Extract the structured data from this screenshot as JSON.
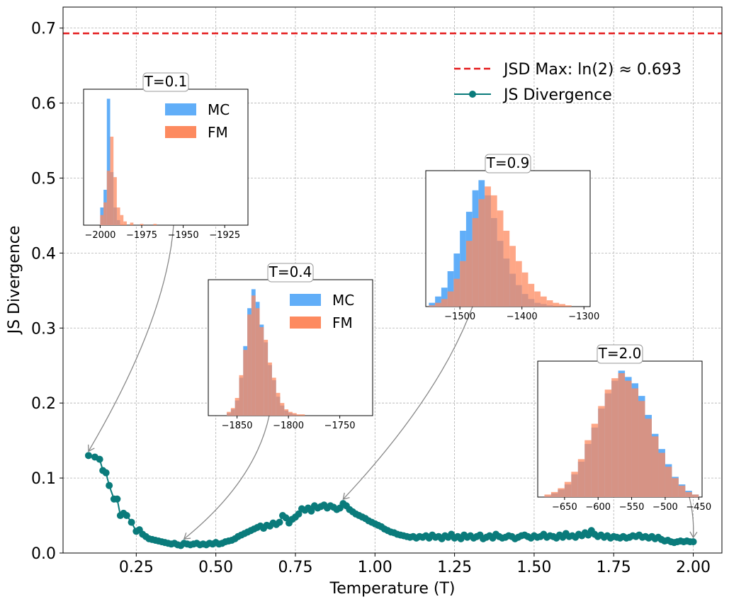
{
  "chart_data": {
    "type": "line",
    "xlabel": "Temperature (T)",
    "ylabel": "JS Divergence",
    "xlim": [
      0.02,
      2.09
    ],
    "ylim": [
      0.0,
      0.728
    ],
    "x_ticks": [
      0.25,
      0.5,
      0.75,
      1.0,
      1.25,
      1.5,
      1.75,
      2.0
    ],
    "x_tick_labels": [
      "0.25",
      "0.50",
      "0.75",
      "1.00",
      "1.25",
      "1.50",
      "1.75",
      "2.00"
    ],
    "y_ticks": [
      0.0,
      0.1,
      0.2,
      0.3,
      0.4,
      0.5,
      0.6,
      0.7
    ],
    "y_tick_labels": [
      "0.0",
      "0.1",
      "0.2",
      "0.3",
      "0.4",
      "0.5",
      "0.6",
      "0.7"
    ],
    "grid": true,
    "legend_position": "top-right",
    "reference_line": {
      "label": "JSD Max: ln(2) ≈ 0.693",
      "y": 0.693,
      "color": "#e41a1c",
      "style": "dashed"
    },
    "series": [
      {
        "name": "JS Divergence",
        "color": "#0a7b7b",
        "marker": "circle",
        "points": [
          [
            0.1,
            0.13
          ],
          [
            0.12,
            0.128
          ],
          [
            0.135,
            0.125
          ],
          [
            0.145,
            0.11
          ],
          [
            0.155,
            0.107
          ],
          [
            0.165,
            0.09
          ],
          [
            0.18,
            0.072
          ],
          [
            0.19,
            0.072
          ],
          [
            0.2,
            0.05
          ],
          [
            0.21,
            0.053
          ],
          [
            0.22,
            0.05
          ],
          [
            0.235,
            0.041
          ],
          [
            0.25,
            0.029
          ],
          [
            0.26,
            0.031
          ],
          [
            0.27,
            0.025
          ],
          [
            0.28,
            0.022
          ],
          [
            0.29,
            0.019
          ],
          [
            0.3,
            0.018
          ],
          [
            0.31,
            0.017
          ],
          [
            0.32,
            0.016
          ],
          [
            0.33,
            0.015
          ],
          [
            0.34,
            0.014
          ],
          [
            0.35,
            0.013
          ],
          [
            0.36,
            0.012
          ],
          [
            0.37,
            0.013
          ],
          [
            0.38,
            0.011
          ],
          [
            0.39,
            0.01
          ],
          [
            0.4,
            0.013
          ],
          [
            0.41,
            0.012
          ],
          [
            0.42,
            0.011
          ],
          [
            0.43,
            0.012
          ],
          [
            0.44,
            0.013
          ],
          [
            0.45,
            0.011
          ],
          [
            0.46,
            0.012
          ],
          [
            0.47,
            0.011
          ],
          [
            0.48,
            0.013
          ],
          [
            0.49,
            0.012
          ],
          [
            0.5,
            0.014
          ],
          [
            0.51,
            0.012
          ],
          [
            0.52,
            0.013
          ],
          [
            0.53,
            0.015
          ],
          [
            0.54,
            0.016
          ],
          [
            0.55,
            0.017
          ],
          [
            0.56,
            0.019
          ],
          [
            0.57,
            0.022
          ],
          [
            0.58,
            0.024
          ],
          [
            0.59,
            0.026
          ],
          [
            0.6,
            0.028
          ],
          [
            0.61,
            0.03
          ],
          [
            0.62,
            0.032
          ],
          [
            0.63,
            0.034
          ],
          [
            0.64,
            0.036
          ],
          [
            0.65,
            0.033
          ],
          [
            0.66,
            0.037
          ],
          [
            0.67,
            0.036
          ],
          [
            0.68,
            0.04
          ],
          [
            0.69,
            0.038
          ],
          [
            0.7,
            0.041
          ],
          [
            0.71,
            0.05
          ],
          [
            0.72,
            0.047
          ],
          [
            0.73,
            0.04
          ],
          [
            0.74,
            0.045
          ],
          [
            0.75,
            0.048
          ],
          [
            0.76,
            0.052
          ],
          [
            0.77,
            0.059
          ],
          [
            0.78,
            0.057
          ],
          [
            0.79,
            0.06
          ],
          [
            0.8,
            0.056
          ],
          [
            0.81,
            0.063
          ],
          [
            0.82,
            0.06
          ],
          [
            0.83,
            0.062
          ],
          [
            0.84,
            0.064
          ],
          [
            0.85,
            0.06
          ],
          [
            0.86,
            0.063
          ],
          [
            0.87,
            0.061
          ],
          [
            0.88,
            0.058
          ],
          [
            0.89,
            0.06
          ],
          [
            0.9,
            0.066
          ],
          [
            0.91,
            0.063
          ],
          [
            0.92,
            0.058
          ],
          [
            0.93,
            0.055
          ],
          [
            0.94,
            0.052
          ],
          [
            0.95,
            0.05
          ],
          [
            0.96,
            0.048
          ],
          [
            0.97,
            0.046
          ],
          [
            0.98,
            0.043
          ],
          [
            0.99,
            0.041
          ],
          [
            1.0,
            0.039
          ],
          [
            1.01,
            0.037
          ],
          [
            1.02,
            0.035
          ],
          [
            1.03,
            0.032
          ],
          [
            1.04,
            0.03
          ],
          [
            1.05,
            0.028
          ],
          [
            1.06,
            0.027
          ],
          [
            1.07,
            0.025
          ],
          [
            1.08,
            0.024
          ],
          [
            1.09,
            0.023
          ],
          [
            1.1,
            0.022
          ],
          [
            1.11,
            0.021
          ],
          [
            1.12,
            0.022
          ],
          [
            1.13,
            0.02
          ],
          [
            1.14,
            0.022
          ],
          [
            1.15,
            0.021
          ],
          [
            1.16,
            0.023
          ],
          [
            1.17,
            0.02
          ],
          [
            1.18,
            0.024
          ],
          [
            1.19,
            0.021
          ],
          [
            1.2,
            0.022
          ],
          [
            1.21,
            0.019
          ],
          [
            1.22,
            0.023
          ],
          [
            1.23,
            0.021
          ],
          [
            1.24,
            0.025
          ],
          [
            1.25,
            0.02
          ],
          [
            1.26,
            0.022
          ],
          [
            1.27,
            0.019
          ],
          [
            1.28,
            0.024
          ],
          [
            1.29,
            0.021
          ],
          [
            1.3,
            0.023
          ],
          [
            1.31,
            0.02
          ],
          [
            1.32,
            0.022
          ],
          [
            1.33,
            0.024
          ],
          [
            1.34,
            0.019
          ],
          [
            1.35,
            0.021
          ],
          [
            1.36,
            0.023
          ],
          [
            1.37,
            0.02
          ],
          [
            1.38,
            0.025
          ],
          [
            1.39,
            0.022
          ],
          [
            1.4,
            0.02
          ],
          [
            1.41,
            0.021
          ],
          [
            1.42,
            0.023
          ],
          [
            1.43,
            0.022
          ],
          [
            1.44,
            0.019
          ],
          [
            1.45,
            0.021
          ],
          [
            1.46,
            0.023
          ],
          [
            1.47,
            0.024
          ],
          [
            1.48,
            0.022
          ],
          [
            1.49,
            0.02
          ],
          [
            1.5,
            0.023
          ],
          [
            1.51,
            0.021
          ],
          [
            1.52,
            0.022
          ],
          [
            1.53,
            0.025
          ],
          [
            1.54,
            0.021
          ],
          [
            1.55,
            0.023
          ],
          [
            1.56,
            0.022
          ],
          [
            1.57,
            0.02
          ],
          [
            1.58,
            0.024
          ],
          [
            1.59,
            0.021
          ],
          [
            1.6,
            0.026
          ],
          [
            1.61,
            0.022
          ],
          [
            1.62,
            0.023
          ],
          [
            1.63,
            0.021
          ],
          [
            1.64,
            0.025
          ],
          [
            1.65,
            0.023
          ],
          [
            1.66,
            0.027
          ],
          [
            1.67,
            0.024
          ],
          [
            1.68,
            0.03
          ],
          [
            1.69,
            0.025
          ],
          [
            1.7,
            0.022
          ],
          [
            1.71,
            0.024
          ],
          [
            1.72,
            0.021
          ],
          [
            1.73,
            0.023
          ],
          [
            1.74,
            0.02
          ],
          [
            1.75,
            0.022
          ],
          [
            1.76,
            0.021
          ],
          [
            1.77,
            0.02
          ],
          [
            1.78,
            0.022
          ],
          [
            1.79,
            0.02
          ],
          [
            1.8,
            0.021
          ],
          [
            1.81,
            0.023
          ],
          [
            1.82,
            0.022
          ],
          [
            1.83,
            0.024
          ],
          [
            1.84,
            0.021
          ],
          [
            1.85,
            0.022
          ],
          [
            1.86,
            0.02
          ],
          [
            1.87,
            0.022
          ],
          [
            1.88,
            0.019
          ],
          [
            1.89,
            0.021
          ],
          [
            1.9,
            0.018
          ],
          [
            1.91,
            0.016
          ],
          [
            1.92,
            0.017
          ],
          [
            1.93,
            0.015
          ],
          [
            1.94,
            0.014
          ],
          [
            1.95,
            0.015
          ],
          [
            1.96,
            0.016
          ],
          [
            1.97,
            0.015
          ],
          [
            1.98,
            0.016
          ],
          [
            1.99,
            0.015
          ],
          [
            2.0,
            0.015
          ]
        ]
      }
    ],
    "insets": [
      {
        "title": "T=0.1",
        "x_ticks": [
          -2000,
          -1975,
          -1950,
          -1925
        ],
        "x_tick_labels": [
          "−2000",
          "−1975",
          "−1950",
          "−1925"
        ],
        "legend": [
          "MC",
          "FM"
        ],
        "anchor_t": 0.1,
        "anchor_y": 0.13,
        "xlim": [
          -2010,
          -1911
        ],
        "bins_x": [
          -2000,
          -1998,
          -1996,
          -1994,
          -1992,
          -1990,
          -1988,
          -1986,
          -1982,
          -1976,
          -1968
        ],
        "mc": [
          0.14,
          0.28,
          1.0,
          0.42,
          0.14,
          0.04,
          0.0,
          0.0,
          0.0,
          0.0,
          0.0
        ],
        "fm": [
          0.08,
          0.18,
          0.43,
          0.7,
          0.38,
          0.14,
          0.08,
          0.03,
          0.02,
          0.01,
          0.01
        ]
      },
      {
        "title": "T=0.4",
        "x_ticks": [
          -1850,
          -1800,
          -1750
        ],
        "x_tick_labels": [
          "−1850",
          "−1800",
          "−1750"
        ],
        "legend": [
          "MC",
          "FM"
        ],
        "anchor_t": 0.4,
        "anchor_y": 0.013,
        "xlim": [
          -1878,
          -1718
        ],
        "bins_x": [
          -1860,
          -1856,
          -1852,
          -1848,
          -1844,
          -1840,
          -1836,
          -1832,
          -1828,
          -1824,
          -1820,
          -1816,
          -1812,
          -1808,
          -1804,
          -1800,
          -1796,
          -1792,
          -1788,
          -1784,
          -1780
        ],
        "mc": [
          0.02,
          0.05,
          0.12,
          0.3,
          0.55,
          0.85,
          1.0,
          0.9,
          0.72,
          0.58,
          0.4,
          0.28,
          0.15,
          0.08,
          0.04,
          0.02,
          0.01,
          0.0,
          0.0,
          0.0,
          0.0
        ],
        "fm": [
          0.03,
          0.06,
          0.14,
          0.32,
          0.52,
          0.8,
          0.95,
          0.85,
          0.7,
          0.6,
          0.42,
          0.3,
          0.18,
          0.1,
          0.05,
          0.03,
          0.02,
          0.01,
          0.01,
          0.0,
          0.0
        ]
      },
      {
        "title": "T=0.9",
        "x_ticks": [
          -1500,
          -1400,
          -1300
        ],
        "x_tick_labels": [
          "−1500",
          "−1400",
          "−1300"
        ],
        "legend": [],
        "anchor_t": 0.9,
        "anchor_y": 0.066,
        "xlim": [
          -1555,
          -1290
        ],
        "bins_x": [
          -1550,
          -1540,
          -1530,
          -1520,
          -1510,
          -1500,
          -1490,
          -1480,
          -1470,
          -1460,
          -1450,
          -1440,
          -1430,
          -1420,
          -1410,
          -1400,
          -1390,
          -1380,
          -1370,
          -1360,
          -1350,
          -1340,
          -1330
        ],
        "mc": [
          0.03,
          0.08,
          0.15,
          0.28,
          0.42,
          0.6,
          0.75,
          0.92,
          1.0,
          0.88,
          0.7,
          0.52,
          0.38,
          0.26,
          0.17,
          0.1,
          0.06,
          0.03,
          0.02,
          0.01,
          0.0,
          0.0,
          0.0
        ],
        "fm": [
          0.01,
          0.03,
          0.06,
          0.12,
          0.22,
          0.36,
          0.52,
          0.7,
          0.85,
          0.95,
          0.88,
          0.76,
          0.6,
          0.48,
          0.36,
          0.27,
          0.18,
          0.12,
          0.08,
          0.05,
          0.03,
          0.02,
          0.01
        ]
      },
      {
        "title": "T=2.0",
        "x_ticks": [
          -650,
          -600,
          -550,
          -500,
          -450
        ],
        "x_tick_labels": [
          "−650",
          "−600",
          "−550",
          "−500",
          "−450"
        ],
        "legend": [],
        "anchor_t": 2.0,
        "anchor_y": 0.015,
        "xlim": [
          -690,
          -445
        ],
        "bins_x": [
          -680,
          -670,
          -660,
          -650,
          -640,
          -630,
          -620,
          -610,
          -600,
          -590,
          -580,
          -570,
          -560,
          -550,
          -540,
          -530,
          -520,
          -510,
          -500,
          -490,
          -480,
          -470,
          -460
        ],
        "mc": [
          0.01,
          0.03,
          0.06,
          0.1,
          0.18,
          0.28,
          0.42,
          0.55,
          0.7,
          0.82,
          0.92,
          1.0,
          0.95,
          0.9,
          0.8,
          0.65,
          0.5,
          0.38,
          0.26,
          0.16,
          0.1,
          0.05,
          0.02
        ],
        "fm": [
          0.02,
          0.04,
          0.07,
          0.12,
          0.2,
          0.3,
          0.45,
          0.58,
          0.72,
          0.85,
          0.94,
          0.98,
          0.92,
          0.86,
          0.76,
          0.62,
          0.48,
          0.35,
          0.24,
          0.15,
          0.09,
          0.04,
          0.02
        ]
      }
    ]
  }
}
